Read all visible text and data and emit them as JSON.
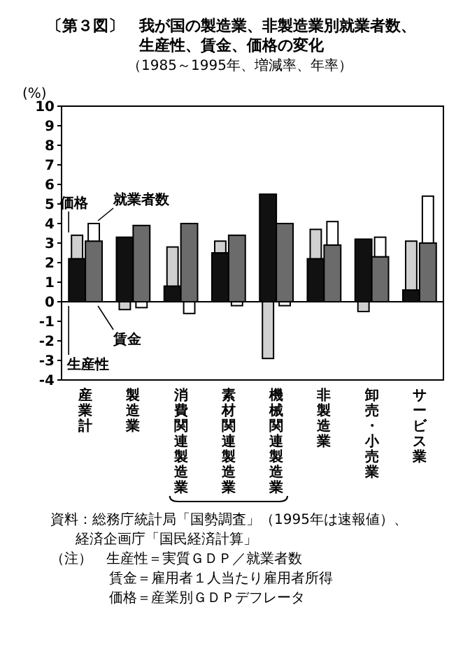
{
  "chart_data": {
    "type": "bar",
    "title": "〔第３図〕　我が国の製造業、非製造業別就業者数、生産性、賃金、価格の変化",
    "subtitle": "（1985～1995年、増減率、年率）",
    "ylabel": "(%)",
    "categories": [
      "産業計",
      "製造業",
      "消費関連製造業",
      "素材関連製造業",
      "機械関連製造業",
      "非製造業",
      "卸売・小売業",
      "サービス業"
    ],
    "series": [
      {
        "name": "生産性",
        "color": "#111111",
        "values": [
          2.2,
          3.3,
          0.8,
          2.5,
          5.5,
          2.2,
          3.2,
          0.6
        ]
      },
      {
        "name": "価格",
        "color": "#d0d0d0",
        "base": [
          2.2,
          0,
          0.8,
          2.5,
          0,
          2.2,
          0,
          0.6
        ],
        "values": [
          1.2,
          -0.4,
          2.0,
          0.6,
          -2.9,
          1.5,
          -0.5,
          2.5
        ]
      },
      {
        "name": "賃金",
        "color": "#6b6b6b",
        "values": [
          3.1,
          3.9,
          4.0,
          3.4,
          4.0,
          2.9,
          2.3,
          3.0
        ]
      },
      {
        "name": "就業者数",
        "color": "#ffffff",
        "base": [
          3.1,
          0,
          0,
          0,
          0,
          2.9,
          2.3,
          3.0
        ],
        "values": [
          0.9,
          -0.3,
          -0.6,
          -0.2,
          -0.2,
          1.2,
          1.0,
          2.4
        ]
      }
    ],
    "ylim": [
      -4,
      10
    ],
    "yticks": [
      -4,
      -3,
      -2,
      -1,
      0,
      1,
      2,
      3,
      4,
      5,
      6,
      7,
      8,
      9,
      10
    ],
    "annotations": [
      "資料：総務庁統計局「国勢調査」（1995年は速報値）、",
      "経済企画庁「国民経済計算」",
      "（注）　生産性＝実質ＧＤＰ／就業者数",
      "賃金＝雇用者１人当たり雇用者所得",
      "価格＝産業別ＧＤＰデフレータ"
    ]
  }
}
